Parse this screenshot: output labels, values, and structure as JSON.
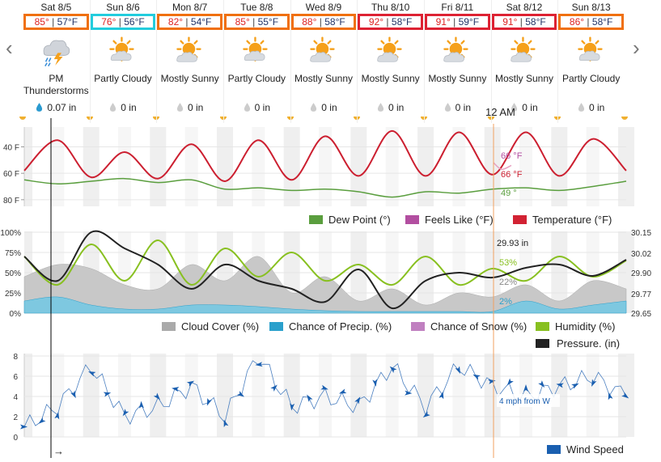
{
  "forecast": {
    "days": [
      {
        "date": "Sat 8/5",
        "high": "85°",
        "low": "57°F",
        "condition": "PM Thunderstorms",
        "precip": "0.07 in",
        "icon": "thunderstorm-icon",
        "highlight": "#f07010"
      },
      {
        "date": "Sun 8/6",
        "high": "76°",
        "low": "56°F",
        "condition": "Partly Cloudy",
        "precip": "0 in",
        "icon": "partly-cloudy-icon",
        "highlight": "#22ccdd"
      },
      {
        "date": "Mon 8/7",
        "high": "82°",
        "low": "54°F",
        "condition": "Mostly Sunny",
        "precip": "0 in",
        "icon": "mostly-sunny-icon",
        "highlight": "#f07010"
      },
      {
        "date": "Tue 8/8",
        "high": "85°",
        "low": "55°F",
        "condition": "Partly Cloudy",
        "precip": "0 in",
        "icon": "partly-cloudy-icon",
        "highlight": "#f07010"
      },
      {
        "date": "Wed 8/9",
        "high": "88°",
        "low": "58°F",
        "condition": "Mostly Sunny",
        "precip": "0 in",
        "icon": "mostly-sunny-icon",
        "highlight": "#f07010"
      },
      {
        "date": "Thu 8/10",
        "high": "92°",
        "low": "58°F",
        "condition": "Mostly Sunny",
        "precip": "0 in",
        "icon": "mostly-sunny-icon",
        "highlight": "#dd2233"
      },
      {
        "date": "Fri 8/11",
        "high": "91°",
        "low": "59°F",
        "condition": "Mostly Sunny",
        "precip": "0 in",
        "icon": "mostly-sunny-icon",
        "highlight": "#dd2233"
      },
      {
        "date": "Sat 8/12",
        "high": "91°",
        "low": "58°F",
        "condition": "Mostly Sunny",
        "precip": "0 in",
        "icon": "mostly-sunny-icon",
        "highlight": "#dd2233"
      },
      {
        "date": "Sun 8/13",
        "high": "86°",
        "low": "58°F",
        "condition": "Partly Cloudy",
        "precip": "0 in",
        "icon": "partly-cloudy-icon",
        "highlight": "#f07010"
      }
    ],
    "separator": "|",
    "nav_prev": "‹",
    "nav_next": "›"
  },
  "cursor": {
    "time_label": "12 AM",
    "temperature": "66 °F",
    "feels_like": "66 °F",
    "dew_point": "49 °",
    "pressure": "29.93 in",
    "humidity": "53%",
    "cloud_cover": "22%",
    "precip_chance": "2%",
    "wind": "4 mph from W",
    "color": "#f0a060"
  },
  "temp_chart": {
    "y_ticks": [
      "80 F",
      "60 F",
      "40 F"
    ],
    "legend": [
      {
        "label": "Dew Point (°)",
        "color": "#5a9e3e"
      },
      {
        "label": "Feels Like (°F)",
        "color": "#b24ea0"
      },
      {
        "label": "Temperature (°F)",
        "color": "#d22233"
      }
    ]
  },
  "sky_chart": {
    "y_ticks_left": [
      "100%",
      "75%",
      "50%",
      "25%",
      "0%"
    ],
    "y_ticks_right": [
      "30.15",
      "30.02",
      "29.90",
      "29.77",
      "29.65"
    ],
    "legend": [
      {
        "label": "Cloud Cover (%)",
        "color": "#aaaaaa"
      },
      {
        "label": "Chance of Precip. (%)",
        "color": "#2aa0cc"
      },
      {
        "label": "Chance of Snow (%)",
        "color": "#c080c0"
      },
      {
        "label": "Humidity (%)",
        "color": "#88c020"
      },
      {
        "label": "Pressure. (in)",
        "color": "#222222"
      }
    ]
  },
  "wind_chart": {
    "y_ticks": [
      "8",
      "6",
      "4",
      "2",
      "0"
    ],
    "legend": [
      {
        "label": "Wind Speed",
        "color": "#1a5fb0"
      }
    ],
    "arrow_glyph": "→"
  },
  "chart_data": [
    {
      "type": "line",
      "x_unit": "day",
      "x": [
        0,
        0.5,
        1,
        1.5,
        2,
        2.5,
        3,
        3.5,
        4,
        4.5,
        5,
        5.5,
        6,
        6.5,
        7,
        7.5,
        8,
        8.5,
        9
      ],
      "series": [
        {
          "name": "Temperature (°F)",
          "values": [
            62,
            85,
            57,
            76,
            56,
            82,
            54,
            85,
            55,
            88,
            58,
            92,
            58,
            91,
            59,
            91,
            58,
            86,
            62
          ]
        },
        {
          "name": "Dew Point (°)",
          "values": [
            55,
            52,
            54,
            56,
            53,
            55,
            48,
            49,
            47,
            48,
            46,
            42,
            46,
            45,
            48,
            49,
            47,
            50,
            54
          ]
        }
      ],
      "ylim": [
        35,
        95
      ],
      "y_ticks": [
        40,
        60,
        80
      ],
      "grid": true
    },
    {
      "type": "line",
      "x_unit": "day",
      "x": [
        0,
        0.5,
        1,
        1.5,
        2,
        2.5,
        3,
        3.5,
        4,
        4.5,
        5,
        5.5,
        6,
        6.5,
        7,
        7.5,
        8,
        8.5,
        9
      ],
      "series": [
        {
          "name": "Humidity (%)",
          "values": [
            70,
            35,
            85,
            40,
            90,
            35,
            80,
            45,
            75,
            40,
            60,
            35,
            70,
            35,
            55,
            40,
            70,
            45,
            65
          ]
        },
        {
          "name": "Cloud Cover (%)",
          "values": [
            45,
            60,
            55,
            35,
            30,
            60,
            40,
            70,
            25,
            45,
            15,
            30,
            10,
            25,
            20,
            35,
            15,
            40,
            30
          ]
        },
        {
          "name": "Chance of Precip. (%)",
          "values": [
            15,
            20,
            10,
            5,
            5,
            10,
            10,
            8,
            5,
            3,
            2,
            2,
            2,
            2,
            2,
            15,
            5,
            10,
            15
          ]
        },
        {
          "name": "Pressure. (in)",
          "values": [
            30.0,
            29.85,
            30.15,
            30.05,
            29.95,
            29.8,
            29.95,
            29.85,
            29.8,
            29.72,
            29.92,
            29.68,
            29.85,
            29.9,
            29.87,
            29.93,
            29.95,
            29.88,
            29.98
          ]
        }
      ],
      "ylim": [
        0,
        100
      ],
      "y2lim": [
        29.65,
        30.15
      ],
      "grid": true
    },
    {
      "type": "line",
      "x_unit": "day",
      "x": [
        0,
        0.5,
        1,
        1.5,
        2,
        2.5,
        3,
        3.5,
        4,
        4.5,
        5,
        5.5,
        6,
        6.5,
        7,
        7.5,
        8,
        8.5,
        9
      ],
      "series": [
        {
          "name": "Wind Speed",
          "values": [
            1,
            3,
            7,
            2,
            3,
            5,
            2,
            8,
            3,
            4,
            3,
            7,
            3,
            7,
            5,
            4,
            5,
            6,
            4
          ]
        }
      ],
      "ylim": [
        0,
        8
      ],
      "y_ticks": [
        0,
        2,
        4,
        6,
        8
      ],
      "grid": true
    }
  ]
}
